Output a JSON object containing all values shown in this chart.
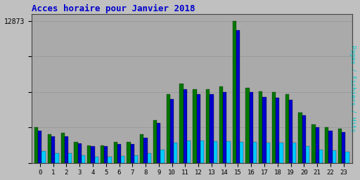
{
  "title": "Acces horaire pour Janvier 2018",
  "ylabel": "Pages / Fichiers / Hits",
  "hours": [
    0,
    1,
    2,
    3,
    4,
    5,
    6,
    7,
    8,
    9,
    10,
    11,
    12,
    13,
    14,
    15,
    16,
    17,
    18,
    19,
    20,
    21,
    22,
    23
  ],
  "pages": [
    3200,
    2600,
    2700,
    1900,
    1600,
    1600,
    1900,
    1900,
    2600,
    3900,
    6200,
    7200,
    6700,
    6700,
    6900,
    12873,
    6800,
    6500,
    6400,
    6200,
    4600,
    3500,
    3200,
    3100
  ],
  "fichiers": [
    2900,
    2400,
    2400,
    1750,
    1500,
    1500,
    1700,
    1700,
    2300,
    3600,
    5800,
    6700,
    6200,
    6200,
    6400,
    12000,
    6400,
    6000,
    5900,
    5700,
    4300,
    3200,
    2900,
    2800
  ],
  "hits": [
    1050,
    850,
    900,
    680,
    560,
    550,
    620,
    660,
    870,
    1200,
    1850,
    2000,
    2000,
    1980,
    1980,
    1900,
    1900,
    1850,
    1800,
    1800,
    1500,
    1200,
    1100,
    1000
  ],
  "ymax": 13500,
  "ytick_value": 12873,
  "ytick_label": "12873",
  "color_pages": "#007700",
  "color_fichiers": "#0000CC",
  "color_hits": "#00CCFF",
  "bg_color": "#C0C0C0",
  "plot_bg": "#AAAAAA",
  "title_color": "#0000CC",
  "ylabel_color": "#00CCCC",
  "bar_width": 0.28,
  "figsize": [
    5.12,
    2.56
  ],
  "dpi": 100,
  "grid_color": "#999999",
  "grid_yticks": [
    0,
    3218,
    6437,
    9655,
    12873
  ]
}
